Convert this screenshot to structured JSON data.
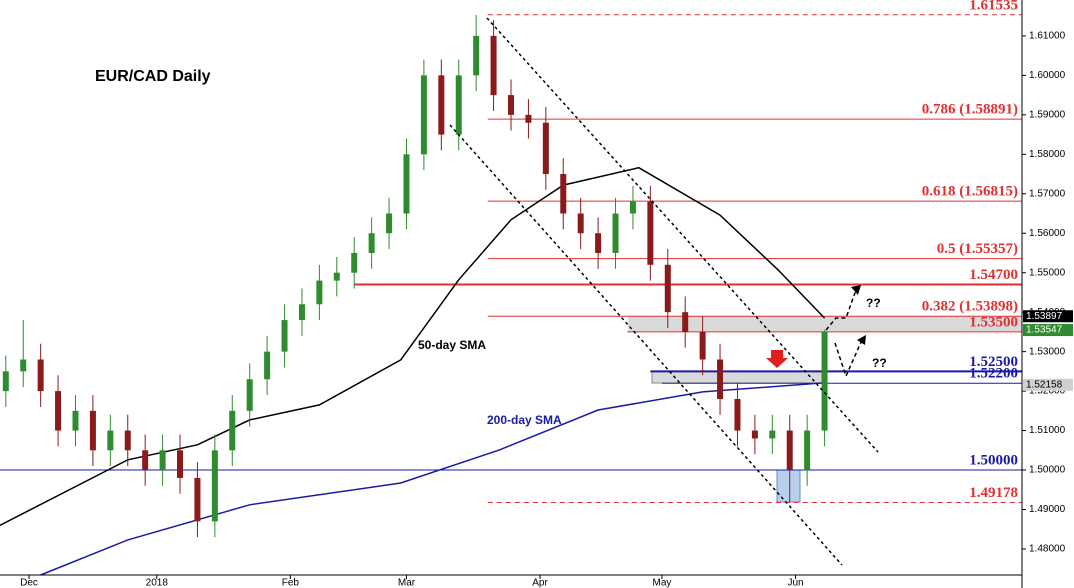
{
  "chart_data": {
    "type": "candlestick",
    "title": "EUR/CAD Daily",
    "x": [
      0,
      3,
      6,
      9,
      12,
      15,
      18,
      21,
      24,
      27,
      30,
      33,
      36,
      39,
      42,
      45,
      48,
      51,
      54,
      57,
      60,
      63,
      66,
      69,
      72,
      75,
      78,
      81,
      84,
      87,
      90,
      93,
      96,
      99,
      102,
      105,
      108,
      111,
      114,
      117,
      120,
      123,
      126,
      129,
      132,
      135,
      138,
      141
    ],
    "open": [
      1.52,
      1.525,
      1.528,
      1.52,
      1.51,
      1.515,
      1.505,
      1.51,
      1.505,
      1.5,
      1.505,
      1.498,
      1.487,
      1.505,
      1.515,
      1.523,
      1.53,
      1.538,
      1.542,
      1.548,
      1.55,
      1.555,
      1.56,
      1.565,
      1.58,
      1.6,
      1.585,
      1.6,
      1.61,
      1.595,
      1.59,
      1.588,
      1.575,
      1.565,
      1.56,
      1.555,
      1.565,
      1.568,
      1.552,
      1.54,
      1.535,
      1.528,
      1.518,
      1.51,
      1.508,
      1.51,
      1.5,
      1.51
    ],
    "high": [
      1.529,
      1.538,
      1.532,
      1.524,
      1.519,
      1.519,
      1.514,
      1.514,
      1.509,
      1.509,
      1.509,
      1.502,
      1.509,
      1.519,
      1.527,
      1.534,
      1.542,
      1.546,
      1.552,
      1.554,
      1.559,
      1.564,
      1.569,
      1.584,
      1.604,
      1.604,
      1.604,
      1.6153,
      1.614,
      1.599,
      1.594,
      1.592,
      1.579,
      1.569,
      1.564,
      1.569,
      1.572,
      1.572,
      1.556,
      1.544,
      1.539,
      1.532,
      1.522,
      1.514,
      1.514,
      1.514,
      1.514,
      1.5355
    ],
    "low": [
      1.516,
      1.521,
      1.516,
      1.506,
      1.506,
      1.501,
      1.501,
      1.501,
      1.496,
      1.496,
      1.494,
      1.483,
      1.483,
      1.501,
      1.511,
      1.519,
      1.526,
      1.534,
      1.538,
      1.544,
      1.546,
      1.551,
      1.556,
      1.561,
      1.576,
      1.581,
      1.581,
      1.596,
      1.591,
      1.586,
      1.584,
      1.571,
      1.561,
      1.556,
      1.551,
      1.551,
      1.561,
      1.548,
      1.536,
      1.531,
      1.524,
      1.514,
      1.506,
      1.504,
      1.504,
      1.4918,
      1.496,
      1.506
    ],
    "close": [
      1.525,
      1.528,
      1.52,
      1.51,
      1.515,
      1.505,
      1.51,
      1.505,
      1.5,
      1.505,
      1.498,
      1.487,
      1.505,
      1.515,
      1.523,
      1.53,
      1.538,
      1.542,
      1.548,
      1.55,
      1.555,
      1.56,
      1.565,
      1.58,
      1.6,
      1.585,
      1.6,
      1.61,
      1.595,
      1.59,
      1.588,
      1.575,
      1.565,
      1.56,
      1.555,
      1.565,
      1.568,
      1.552,
      1.54,
      1.535,
      1.528,
      1.518,
      1.51,
      1.508,
      1.51,
      1.5,
      1.51,
      1.535
    ],
    "up_color": "#2e8b2e",
    "down_color": "#8b1a1a",
    "series": [
      {
        "name": "50-day SMA",
        "color": "#000000",
        "x": [
          -1,
          21,
          33,
          42,
          54,
          68,
          78,
          87,
          96,
          109,
          123,
          133,
          141
        ],
        "values": [
          1.486,
          1.5026,
          1.5064,
          1.5127,
          1.5165,
          1.5279,
          1.5482,
          1.5634,
          1.5722,
          1.5766,
          1.5646,
          1.5507,
          1.5385
        ]
      },
      {
        "name": "200-day SMA",
        "color": "#1a1aaa",
        "x": [
          6,
          21,
          42,
          68,
          85,
          102,
          120,
          141
        ],
        "values": [
          1.4734,
          1.4823,
          1.4912,
          1.4967,
          1.5051,
          1.5152,
          1.5198,
          1.5221
        ]
      }
    ],
    "levels": [
      {
        "value": 1.61535,
        "label": "1.61535",
        "color": "#e03030",
        "style": "dashed",
        "from": 83
      },
      {
        "value": 1.58891,
        "label": "0.786 (1.58891)",
        "color": "#e03030",
        "style": "solid",
        "from": 83
      },
      {
        "value": 1.56815,
        "label": "0.618 (1.56815)",
        "color": "#e03030",
        "style": "solid",
        "from": 83
      },
      {
        "value": 1.55357,
        "label": "0.5 (1.55357)",
        "color": "#e03030",
        "style": "solid",
        "from": 83
      },
      {
        "value": 1.547,
        "label": "1.54700",
        "color": "#e03030",
        "style": "thick",
        "from": 60
      },
      {
        "value": 1.53898,
        "label": "0.382 (1.53898)",
        "color": "#e03030",
        "style": "solid",
        "from": 83
      },
      {
        "value": 1.535,
        "label": "1.53500",
        "color": "#e03030",
        "style": "solid",
        "from": 107
      },
      {
        "value": 1.525,
        "label": "1.52500",
        "color": "#1a1aaa",
        "style": "thick",
        "from": 111
      },
      {
        "value": 1.522,
        "label": "1.52200",
        "color": "#1a1aaa",
        "style": "solid",
        "from": 113
      },
      {
        "value": 1.5,
        "label": "1.50000",
        "color": "#1a1aaa",
        "style": "solid",
        "from": -1
      },
      {
        "value": 1.49178,
        "label": "1.49178",
        "color": "#e03030",
        "style": "dashed",
        "from": 83
      }
    ],
    "price_tags": [
      {
        "value": 1.53897,
        "label": "1.53897",
        "color": "#000000"
      },
      {
        "value": 1.53547,
        "label": "1.53547",
        "color": "#2e8b2e"
      },
      {
        "value": 1.52158,
        "label": "1.52158",
        "color": "#d0d0d0"
      }
    ],
    "annotations": [
      "??",
      "??"
    ],
    "xlim": [
      -1,
      175
    ],
    "xticks": [
      {
        "value": 4,
        "label": "Dec"
      },
      {
        "value": 26,
        "label": "2018"
      },
      {
        "value": 49,
        "label": "Feb"
      },
      {
        "value": 69,
        "label": "Mar"
      },
      {
        "value": 92,
        "label": "Apr"
      },
      {
        "value": 113,
        "label": "May"
      },
      {
        "value": 136,
        "label": "Jun"
      }
    ],
    "ylim": [
      1.4734,
      1.6191
    ],
    "yticks": [
      {
        "value": 1.48,
        "label": "1.48000"
      },
      {
        "value": 1.49,
        "label": "1.49000"
      },
      {
        "value": 1.5,
        "label": "1.50000"
      },
      {
        "value": 1.51,
        "label": "1.51000"
      },
      {
        "value": 1.52,
        "label": "1.52000"
      },
      {
        "value": 1.53,
        "label": "1.53000"
      },
      {
        "value": 1.54,
        "label": "1.54000"
      },
      {
        "value": 1.55,
        "label": "1.55000"
      },
      {
        "value": 1.56,
        "label": "1.56000"
      },
      {
        "value": 1.57,
        "label": "1.57000"
      },
      {
        "value": 1.58,
        "label": "1.58000"
      },
      {
        "value": 1.59,
        "label": "1.59000"
      },
      {
        "value": 1.6,
        "label": "1.60000"
      },
      {
        "value": 1.61,
        "label": "1.61000"
      }
    ]
  }
}
